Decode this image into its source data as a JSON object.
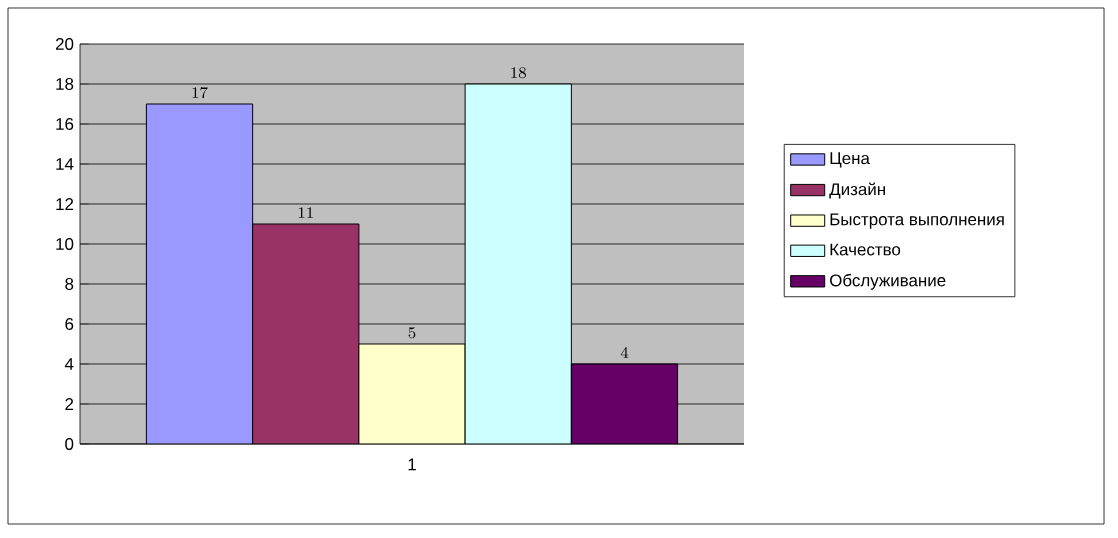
{
  "chart_data": {
    "type": "bar",
    "categories": [
      "1"
    ],
    "series": [
      {
        "name": "Цена",
        "color": "#9999ff",
        "values": [
          17
        ]
      },
      {
        "name": "Дизайн",
        "color": "#993366",
        "values": [
          11
        ]
      },
      {
        "name": "Быстрота выполнения",
        "color": "#ffffcc",
        "values": [
          5
        ]
      },
      {
        "name": "Качество",
        "color": "#ccffff",
        "values": [
          18
        ]
      },
      {
        "name": "Обслуживание",
        "color": "#660066",
        "values": [
          4
        ]
      }
    ],
    "ylim": [
      0,
      20
    ],
    "yticks": [
      0,
      2,
      4,
      6,
      8,
      10,
      12,
      14,
      16,
      18,
      20
    ],
    "grid": "y",
    "legend": "right",
    "data_labels": true
  }
}
